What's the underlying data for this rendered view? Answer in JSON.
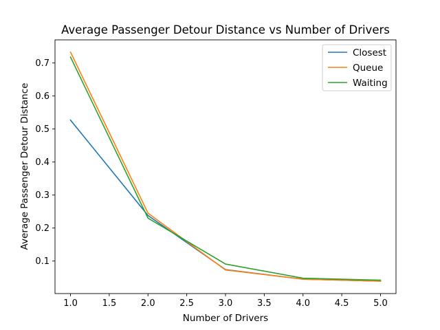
{
  "chart_data": {
    "type": "line",
    "title": "Average Passenger Detour Distance vs Number of Drivers",
    "xlabel": "Number of Drivers",
    "ylabel": "Average Passenger Detour Distance",
    "x": [
      1.0,
      2.0,
      3.0,
      4.0,
      5.0
    ],
    "xlim": [
      0.8,
      5.2
    ],
    "ylim": [
      0.0015,
      0.77
    ],
    "xticks": [
      1.0,
      1.5,
      2.0,
      2.5,
      3.0,
      3.5,
      4.0,
      4.5,
      5.0
    ],
    "xtick_labels": [
      "1.0",
      "1.5",
      "2.0",
      "2.5",
      "3.0",
      "3.5",
      "4.0",
      "4.5",
      "5.0"
    ],
    "yticks": [
      0.1,
      0.2,
      0.3,
      0.4,
      0.5,
      0.6,
      0.7
    ],
    "ytick_labels": [
      "0.1",
      "0.2",
      "0.3",
      "0.4",
      "0.5",
      "0.6",
      "0.7"
    ],
    "grid": false,
    "legend_position": "top-right",
    "series": [
      {
        "name": "Closest",
        "color": "#1f77b4",
        "values": [
          0.527,
          0.238,
          0.074,
          0.045,
          0.039
        ]
      },
      {
        "name": "Queue",
        "color": "#ff7f0e",
        "values": [
          0.733,
          0.245,
          0.073,
          0.045,
          0.039
        ]
      },
      {
        "name": "Waiting",
        "color": "#2ca02c",
        "values": [
          0.718,
          0.23,
          0.091,
          0.048,
          0.042
        ]
      }
    ]
  }
}
